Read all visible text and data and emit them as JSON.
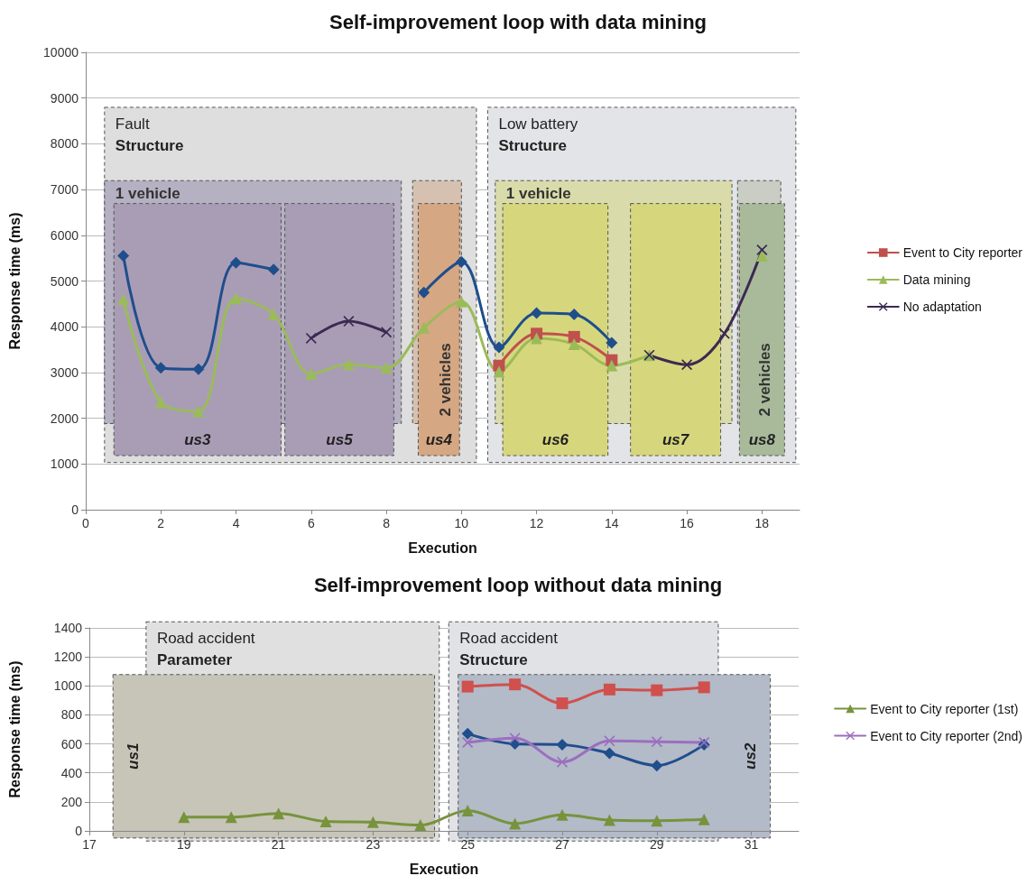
{
  "chart_data": [
    {
      "type": "line",
      "title": "Self-improvement loop with data mining",
      "xlabel": "Execution",
      "ylabel": "Response time (ms)",
      "x": [
        1,
        2,
        3,
        4,
        5,
        6,
        7,
        8,
        9,
        10,
        11,
        12,
        13,
        14,
        15,
        16,
        17,
        18
      ],
      "xlim": [
        0,
        19
      ],
      "xticks": [
        0,
        2,
        4,
        6,
        8,
        10,
        12,
        14,
        16,
        18
      ],
      "ylim": [
        0,
        10000
      ],
      "yticks": [
        0,
        1000,
        2000,
        3000,
        4000,
        5000,
        6000,
        7000,
        8000,
        9000,
        10000
      ],
      "grid": "y",
      "legend": "right",
      "series": [
        {
          "color": "#1f4e8c",
          "marker": "diamond",
          "values": [
            5550,
            3100,
            3070,
            5400,
            5250,
            null,
            null,
            null,
            4750,
            5420,
            3550,
            4300,
            4270,
            3650,
            null,
            null,
            null,
            null
          ]
        },
        {
          "name": "Event to City reporter",
          "color": "#c0504d",
          "marker": "square",
          "values": [
            null,
            null,
            null,
            null,
            null,
            null,
            null,
            null,
            null,
            null,
            3150,
            3850,
            3780,
            3270,
            null,
            null,
            null,
            null
          ]
        },
        {
          "name": "Data mining",
          "color": "#9bbb59",
          "marker": "triangle",
          "values": [
            4600,
            2350,
            2150,
            4620,
            4270,
            2970,
            3180,
            3100,
            3980,
            4550,
            3020,
            3750,
            3620,
            3150,
            3380,
            null,
            null,
            5550
          ]
        },
        {
          "name": "No adaptation",
          "color": "#3b2a52",
          "marker": "cross",
          "values": [
            null,
            null,
            null,
            null,
            null,
            3750,
            4120,
            3880,
            null,
            null,
            null,
            null,
            null,
            null,
            3380,
            3170,
            3850,
            5680
          ]
        }
      ],
      "bands": [
        {
          "axis": "x",
          "from": 0.5,
          "to": 10.4,
          "label": "Fault\nStructure",
          "color": "#dedede"
        },
        {
          "axis": "x",
          "from": 10.7,
          "to": 18.9,
          "label": "Low battery\nStructure",
          "color": "#e2e4e7"
        },
        {
          "axis": "x",
          "from": 0.5,
          "to": 8.4,
          "label": "1 vehicle",
          "color": "#b5b0c2"
        },
        {
          "axis": "x",
          "from": 8.7,
          "to": 10.0,
          "label": "2 vehicles",
          "color": "#d6c1b1"
        },
        {
          "axis": "x",
          "from": 10.9,
          "to": 17.2,
          "label": "1 vehicle",
          "color": "#d9dcaa"
        },
        {
          "axis": "x",
          "from": 17.35,
          "to": 18.5,
          "label": "2 vehicles",
          "color": "#c9cdc3"
        },
        {
          "axis": "x",
          "from": 0.75,
          "to": 5.2,
          "label": "us3",
          "color": "#a99db6"
        },
        {
          "axis": "x",
          "from": 5.3,
          "to": 8.2,
          "label": "us5",
          "color": "#a99db6"
        },
        {
          "axis": "x",
          "from": 8.85,
          "to": 9.95,
          "label": "us4",
          "color": "#d6a783"
        },
        {
          "axis": "x",
          "from": 11.1,
          "to": 13.9,
          "label": "us6",
          "color": "#d6d77d"
        },
        {
          "axis": "x",
          "from": 14.5,
          "to": 16.9,
          "label": "us7",
          "color": "#d6d77d"
        },
        {
          "axis": "x",
          "from": 17.4,
          "to": 18.6,
          "label": "us8",
          "color": "#a9ba9b"
        }
      ]
    },
    {
      "type": "line",
      "title": "Self-improvement loop without data mining",
      "xlabel": "Execution",
      "ylabel": "Response time (ms)",
      "x": [
        19,
        20,
        21,
        22,
        23,
        24,
        25,
        26,
        27,
        28,
        29,
        30
      ],
      "xlim": [
        17,
        32
      ],
      "xticks": [
        17,
        19,
        21,
        23,
        25,
        27,
        29,
        31
      ],
      "ylim": [
        0,
        1400
      ],
      "yticks": [
        0,
        200,
        400,
        600,
        800,
        1000,
        1200,
        1400
      ],
      "grid": "y",
      "legend": "right",
      "series": [
        {
          "color": "#1f4e8c",
          "marker": "diamond",
          "values": [
            null,
            null,
            null,
            null,
            null,
            null,
            670,
            600,
            595,
            535,
            450,
            595
          ]
        },
        {
          "color": "#d0504d",
          "marker": "square",
          "values": [
            null,
            null,
            null,
            null,
            null,
            null,
            995,
            1010,
            880,
            975,
            970,
            990
          ]
        },
        {
          "name": "Event to City reporter (1st)",
          "color": "#77933c",
          "marker": "triangle",
          "values": [
            95,
            95,
            120,
            65,
            60,
            40,
            140,
            50,
            110,
            75,
            70,
            80
          ]
        },
        {
          "name": "Event to City reporter (2nd)",
          "color": "#9b6fc0",
          "marker": "cross",
          "values": [
            null,
            null,
            null,
            null,
            null,
            null,
            610,
            640,
            475,
            620,
            615,
            610
          ]
        }
      ],
      "bands": [
        {
          "axis": "x",
          "from": 18.2,
          "to": 24.4,
          "label": "Road accident\nParameter",
          "color": "#e0e0e0"
        },
        {
          "axis": "x",
          "from": 24.6,
          "to": 30.3,
          "label": "Road accident\nStructure",
          "color": "#e0e2e6"
        },
        {
          "axis": "x",
          "from": 17.5,
          "to": 24.3,
          "label": "us1",
          "color": "#c6c5b8"
        },
        {
          "axis": "x",
          "from": 24.8,
          "to": 31.4,
          "label": "us2",
          "color": "#b3bac8"
        }
      ]
    }
  ]
}
